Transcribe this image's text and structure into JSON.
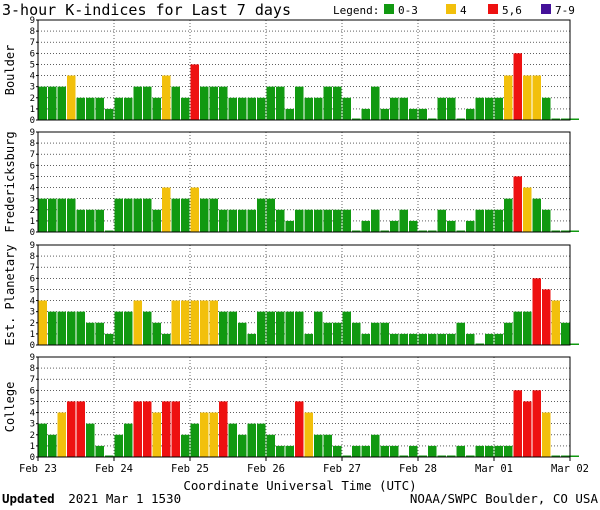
{
  "title": "3-hour K-indices for Last 7 days",
  "legend": {
    "label": "Legend:",
    "items": [
      {
        "range": "0-3",
        "color": "#119911"
      },
      {
        "range": "4",
        "color": "#f2c00c"
      },
      {
        "range": "5,6",
        "color": "#ee1111"
      },
      {
        "range": "7-9",
        "color": "#441199"
      }
    ]
  },
  "chart_data": {
    "type": "bar",
    "xlabel": "Coordinate Universal Time (UTC)",
    "x_ticks": [
      "Feb 23",
      "Feb 24",
      "Feb 25",
      "Feb 26",
      "Feb 27",
      "Feb 28",
      "Mar 01",
      "Mar 02"
    ],
    "ylim": [
      0,
      9
    ],
    "y_ticks": [
      0,
      1,
      2,
      3,
      4,
      5,
      6,
      7,
      8,
      9
    ],
    "grid": "horizontal-dotted",
    "categories_per_day": 8,
    "series": [
      {
        "name": "Boulder",
        "values": [
          3,
          3,
          3,
          4,
          2,
          2,
          2,
          1,
          2,
          2,
          3,
          3,
          2,
          4,
          3,
          2,
          5,
          3,
          3,
          3,
          2,
          2,
          2,
          2,
          3,
          3,
          1,
          3,
          2,
          2,
          3,
          3,
          2,
          0,
          1,
          3,
          1,
          2,
          2,
          1,
          1,
          0,
          2,
          2,
          0,
          1,
          2,
          2,
          2,
          4,
          6,
          4,
          4,
          2,
          0,
          0,
          0
        ]
      },
      {
        "name": "Fredericksburg",
        "values": [
          3,
          3,
          3,
          3,
          2,
          2,
          2,
          0,
          3,
          3,
          3,
          3,
          2,
          4,
          3,
          3,
          4,
          3,
          3,
          2,
          2,
          2,
          2,
          3,
          3,
          2,
          1,
          2,
          2,
          2,
          2,
          2,
          2,
          0,
          1,
          2,
          0,
          1,
          2,
          1,
          0,
          0,
          2,
          1,
          0,
          1,
          2,
          2,
          2,
          3,
          5,
          4,
          3,
          2,
          0,
          0,
          0
        ]
      },
      {
        "name": "Est. Planetary",
        "values": [
          4,
          3,
          3,
          3,
          3,
          2,
          2,
          1,
          3,
          3,
          4,
          3,
          2,
          1,
          4,
          4,
          4,
          4,
          4,
          3,
          3,
          2,
          1,
          3,
          3,
          3,
          3,
          3,
          1,
          3,
          2,
          2,
          3,
          2,
          1,
          2,
          2,
          1,
          1,
          1,
          1,
          1,
          1,
          1,
          2,
          1,
          0,
          1,
          1,
          2,
          3,
          3,
          6,
          5,
          4,
          2,
          0
        ]
      },
      {
        "name": "College",
        "values": [
          3,
          2,
          4,
          5,
          5,
          3,
          1,
          0,
          2,
          3,
          5,
          5,
          4,
          5,
          5,
          2,
          3,
          4,
          4,
          5,
          3,
          2,
          3,
          3,
          2,
          1,
          1,
          5,
          4,
          2,
          2,
          1,
          0,
          1,
          1,
          2,
          1,
          1,
          0,
          1,
          0,
          1,
          0,
          0,
          1,
          0,
          1,
          1,
          1,
          1,
          6,
          5,
          6,
          4,
          0,
          0,
          0
        ]
      }
    ]
  },
  "footer": {
    "updated_label": "Updated",
    "updated_value": "2021 Mar  1 1530",
    "credit": "NOAA/SWPC Boulder, CO USA"
  }
}
